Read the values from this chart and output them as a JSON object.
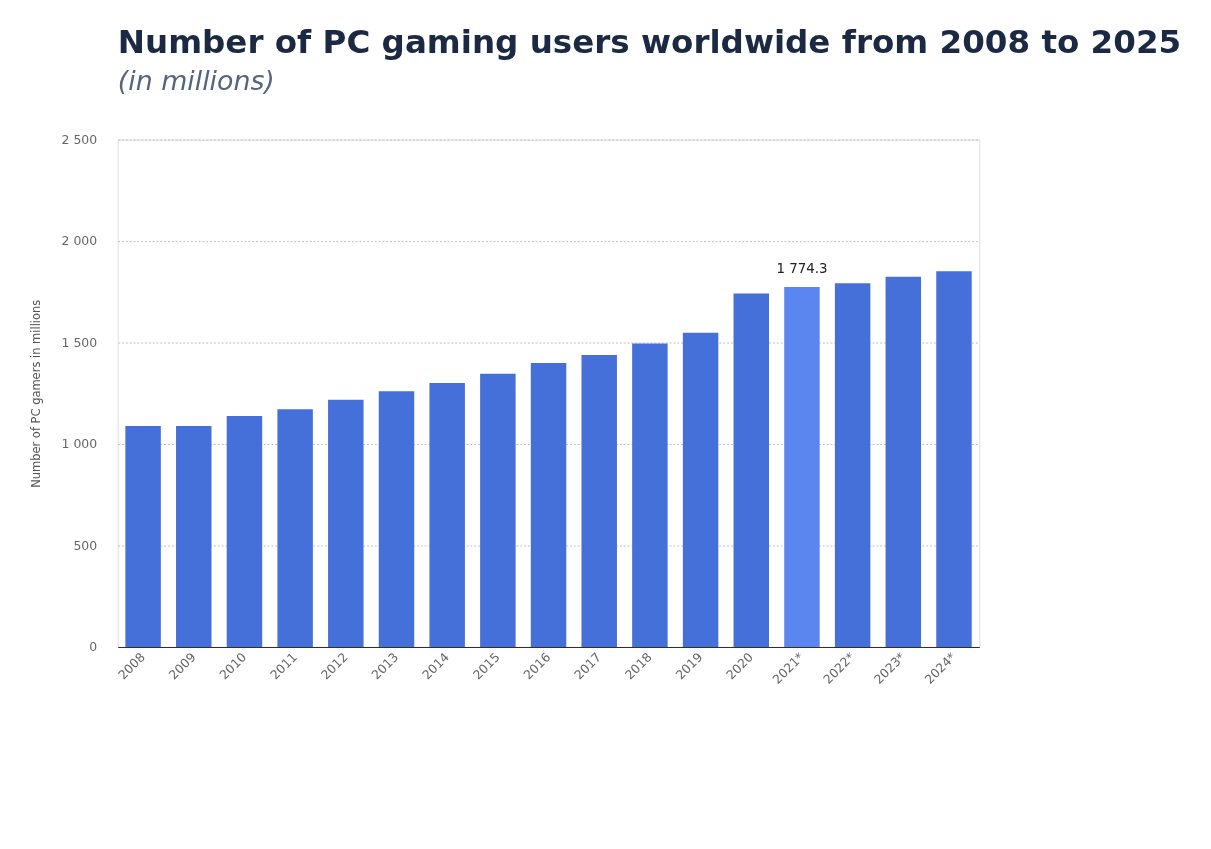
{
  "chart_data": {
    "type": "bar",
    "title": "Number of PC gaming users worldwide from 2008 to 2025",
    "subtitle": "(in millions)",
    "ylabel": "Number of PC gamers in millions",
    "categories": [
      "2008",
      "2009",
      "2010",
      "2011",
      "2012",
      "2013",
      "2014",
      "2015",
      "2016",
      "2017",
      "2018",
      "2019",
      "2020",
      "2021*",
      "2022*",
      "2023*",
      "2024*"
    ],
    "values": [
      1089,
      1089,
      1138,
      1171,
      1218,
      1260,
      1301,
      1347,
      1399,
      1439,
      1495,
      1548,
      1742,
      1774.3,
      1792,
      1824,
      1851
    ],
    "colors": [
      "#456fd9",
      "#456fd9",
      "#456fd9",
      "#456fd9",
      "#456fd9",
      "#456fd9",
      "#456fd9",
      "#456fd9",
      "#456fd9",
      "#456fd9",
      "#456fd9",
      "#456fd9",
      "#456fd9",
      "#5b86f0",
      "#456fd9",
      "#456fd9",
      "#456fd9"
    ],
    "ylim": [
      0,
      2500
    ],
    "yticks": [
      0,
      500,
      {
        "value": 1000,
        "label": "1 000"
      },
      {
        "value": 1500,
        "label": "1 500"
      },
      {
        "value": 2000,
        "label": "2 000"
      },
      {
        "value": 2500,
        "label": "2 500"
      }
    ],
    "grid": "y",
    "annotations": [
      {
        "text": "1 774.3",
        "x": "2021*",
        "y": 1774.3
      }
    ]
  }
}
